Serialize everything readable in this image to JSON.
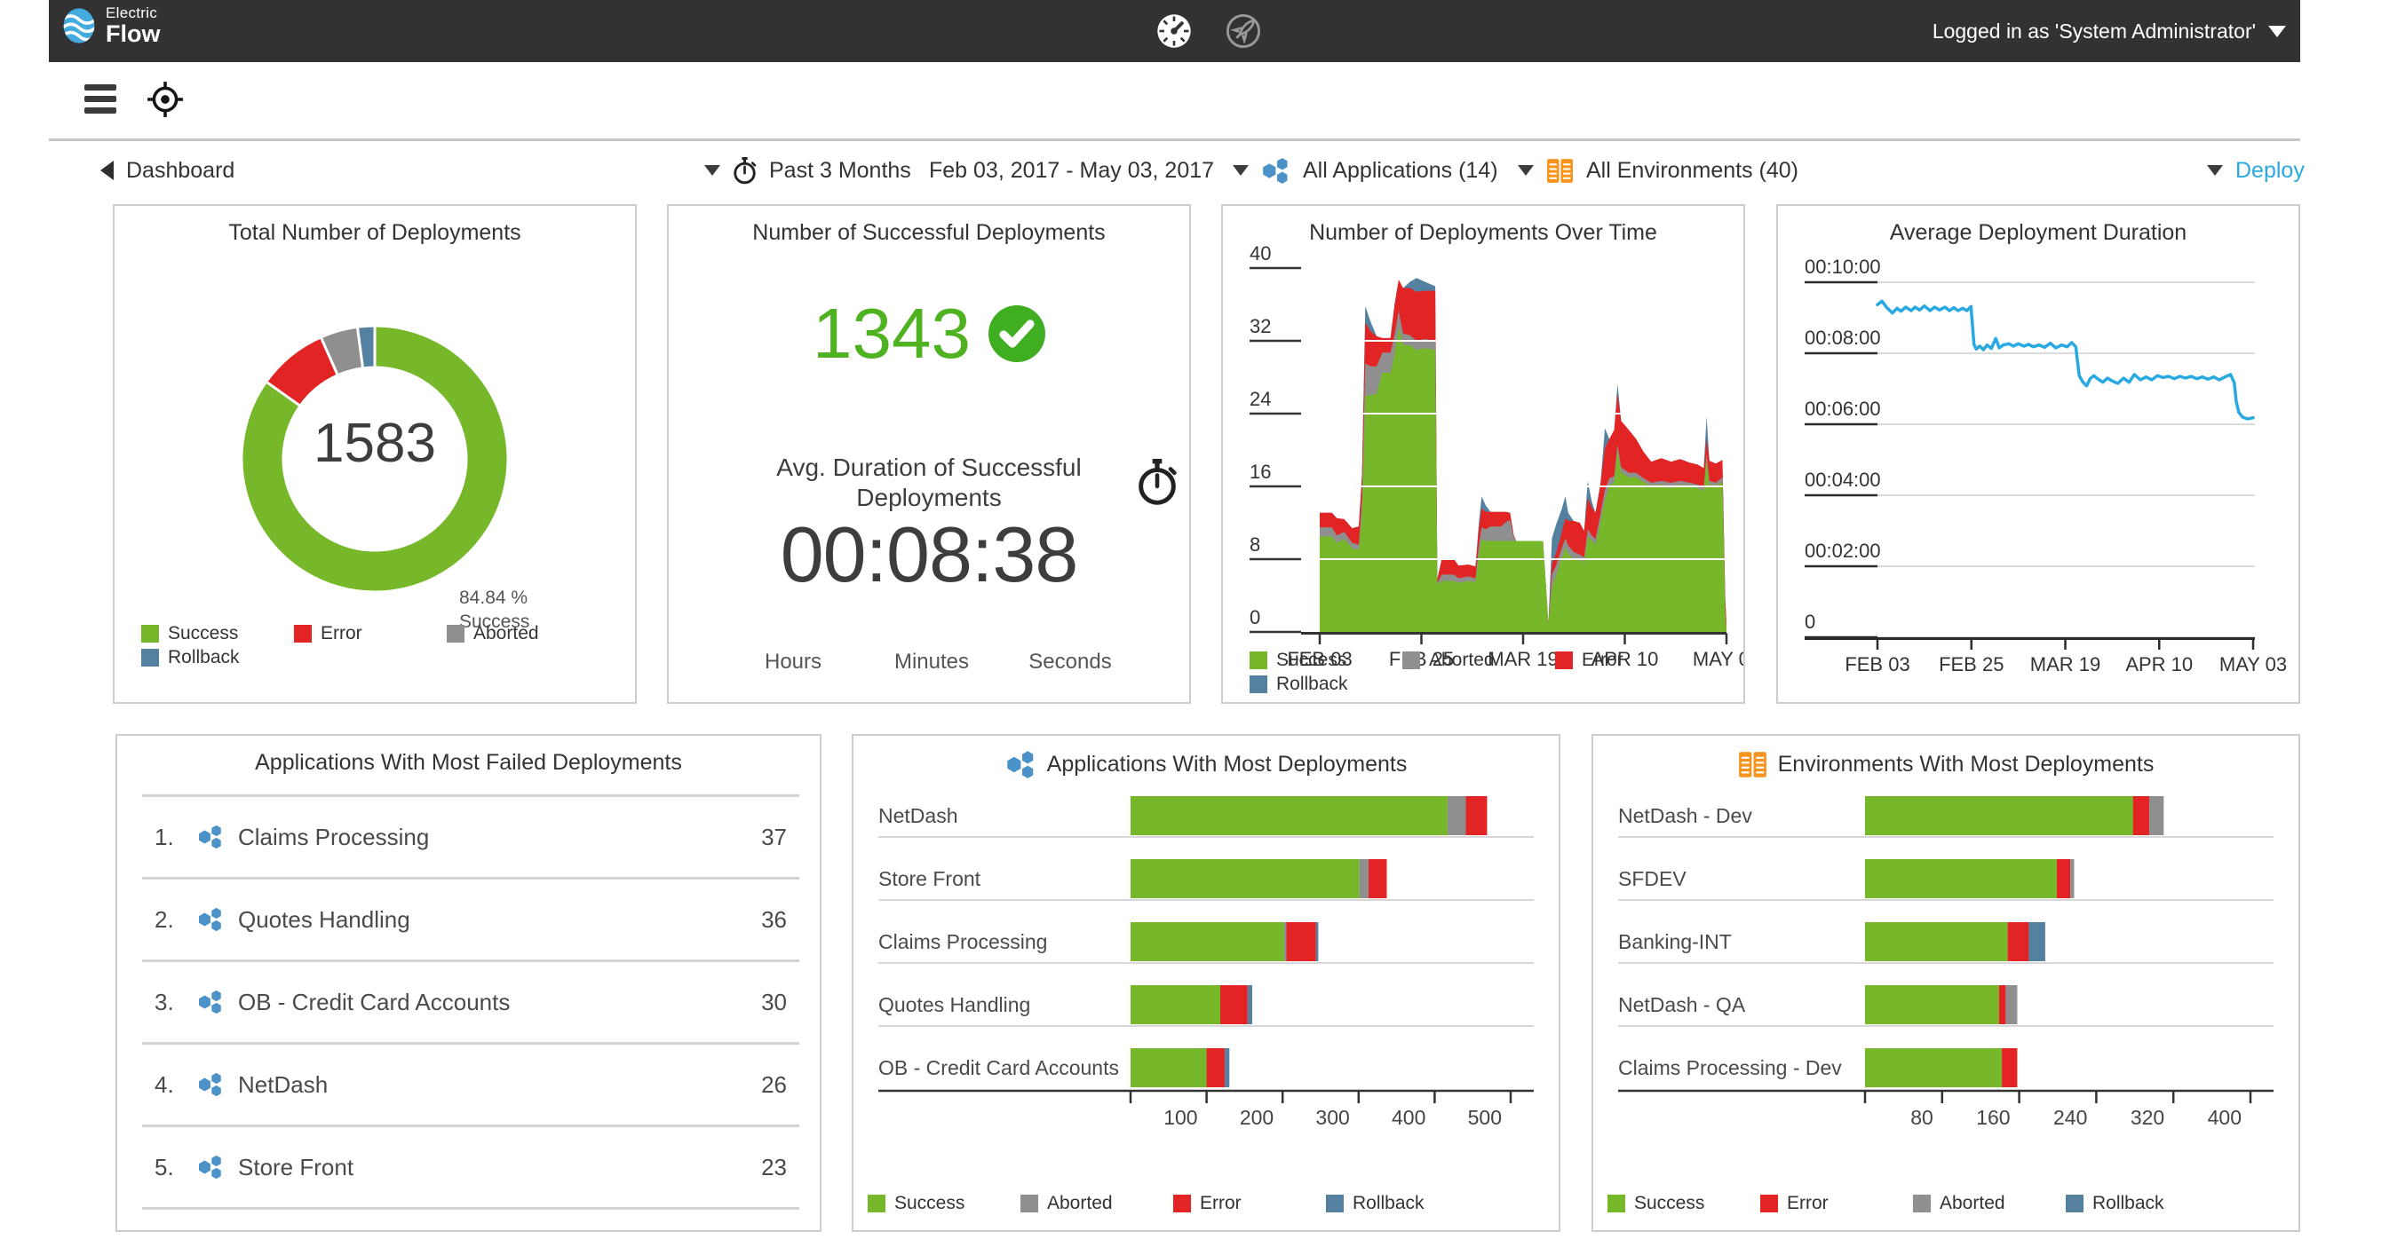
{
  "header": {
    "logo_line1": "Electric",
    "logo_line2": "Flow",
    "user": "Logged in as 'System Administrator'"
  },
  "filters": {
    "breadcrumb": "Dashboard",
    "time_range": "Past 3 Months",
    "date_range": "Feb 03, 2017 - May 03, 2017",
    "applications": "All Applications (14)",
    "environments": "All Environments (40)",
    "deploy": "Deploy"
  },
  "colors": {
    "success": "#76b82a",
    "error": "#e22424",
    "aborted": "#8f8f8f",
    "rollback": "#5581a0",
    "line": "#29a9e1",
    "accent": "#29a9e1",
    "app_icon": "#4b92c8",
    "env_icon": "#f7941e",
    "header_bg": "#323232"
  },
  "cards": {
    "total": {
      "title": "Total Number of Deployments",
      "value": "1583",
      "pct": "84.84 %",
      "pct_label": "Success",
      "legend": [
        {
          "label": "Success",
          "color": "success"
        },
        {
          "label": "Error",
          "color": "error"
        },
        {
          "label": "Aborted",
          "color": "aborted"
        },
        {
          "label": "Rollback",
          "color": "rollback"
        }
      ],
      "chart_data": {
        "type": "pie",
        "donut": true,
        "segments": [
          {
            "label": "Success",
            "pct": 84.84,
            "color": "success"
          },
          {
            "label": "Error",
            "pct": 8.53,
            "color": "error"
          },
          {
            "label": "Aborted",
            "pct": 4.55,
            "color": "aborted"
          },
          {
            "label": "Rollback",
            "pct": 2.08,
            "color": "rollback"
          }
        ]
      }
    },
    "success_card": {
      "title": "Number of Successful Deployments",
      "value": "1343",
      "avg_label": "Avg. Duration of Successful Deployments",
      "duration": "00:08:38",
      "units": [
        "Hours",
        "Minutes",
        "Seconds"
      ]
    },
    "over_time": {
      "title": "Number of Deployments Over Time",
      "legend": [
        {
          "label": "Success",
          "color": "success"
        },
        {
          "label": "Aborted",
          "color": "aborted"
        },
        {
          "label": "Error",
          "color": "error"
        },
        {
          "label": "Rollback",
          "color": "rollback"
        }
      ],
      "chart_data": {
        "type": "area",
        "stacked": true,
        "ylim": [
          0,
          40
        ],
        "yticks": [
          0,
          8,
          16,
          24,
          32,
          40
        ],
        "xlabels": [
          "FEB 03",
          "FEB 25",
          "MAR 19",
          "APR 10",
          "MAY 03"
        ],
        "series_order": [
          "success",
          "aborted",
          "error",
          "rollback"
        ],
        "samples": [
          [
            0.0,
            10.5,
            1.0,
            1.6,
            0
          ],
          [
            0.03,
            10.5,
            1.0,
            1.6,
            0
          ],
          [
            0.042,
            9.8,
            0.8,
            1.9,
            0
          ],
          [
            0.06,
            10.2,
            0.8,
            1.4,
            0
          ],
          [
            0.08,
            9.2,
            0.6,
            1.6,
            0
          ],
          [
            0.096,
            9.0,
            0.6,
            2.0,
            0
          ],
          [
            0.104,
            13.0,
            1.6,
            2.6,
            0
          ],
          [
            0.112,
            26.0,
            3.5,
            4.5,
            1.8
          ],
          [
            0.126,
            26.0,
            3.2,
            3.8,
            1.0
          ],
          [
            0.14,
            26.2,
            3.0,
            3.3,
            0
          ],
          [
            0.154,
            28.5,
            2.2,
            1.6,
            0
          ],
          [
            0.174,
            28.5,
            2.2,
            1.6,
            0
          ],
          [
            0.184,
            30.5,
            2.2,
            3.3,
            0
          ],
          [
            0.194,
            33.5,
            1.8,
            3.4,
            0
          ],
          [
            0.205,
            31.5,
            1.3,
            5.0,
            0
          ],
          [
            0.222,
            31.5,
            1.1,
            5.2,
            0.7
          ],
          [
            0.238,
            31.0,
            1.0,
            5.4,
            1.5
          ],
          [
            0.258,
            31.2,
            1.0,
            5.3,
            1.0
          ],
          [
            0.284,
            31.0,
            1.0,
            5.5,
            0.5
          ],
          [
            0.289,
            5.2,
            0.2,
            0.4,
            0
          ],
          [
            0.3,
            5.6,
            0.7,
            1.7,
            0
          ],
          [
            0.33,
            5.6,
            0.7,
            1.7,
            0
          ],
          [
            0.341,
            5.4,
            0.5,
            1.4,
            0
          ],
          [
            0.366,
            5.6,
            0.5,
            1.3,
            0
          ],
          [
            0.383,
            5.5,
            0.4,
            1.3,
            0
          ],
          [
            0.391,
            8.5,
            1.0,
            1.8,
            0.6
          ],
          [
            0.398,
            10.2,
            1.3,
            2.1,
            1.3
          ],
          [
            0.408,
            10.0,
            1.3,
            1.9,
            0.7
          ],
          [
            0.42,
            10.0,
            1.6,
            1.6,
            0
          ],
          [
            0.446,
            10.0,
            1.6,
            1.6,
            0
          ],
          [
            0.458,
            10.0,
            2.1,
            1.1,
            0
          ],
          [
            0.468,
            10.0,
            2.3,
            0.8,
            0
          ],
          [
            0.477,
            10.0,
            0.4,
            0.2,
            0
          ],
          [
            0.483,
            10.0,
            0,
            0,
            0
          ],
          [
            0.549,
            10.0,
            0,
            0,
            0
          ],
          [
            0.557,
            4.5,
            0,
            0,
            0
          ],
          [
            0.562,
            0.8,
            0,
            0,
            0
          ],
          [
            0.571,
            5.0,
            1.3,
            1.2,
            2.8
          ],
          [
            0.581,
            6.2,
            1.1,
            1.3,
            3.2
          ],
          [
            0.594,
            8.0,
            1.1,
            1.7,
            2.6
          ],
          [
            0.604,
            9.3,
            1.0,
            2.2,
            2.4
          ],
          [
            0.611,
            8.6,
            0.9,
            2.7,
            0.9
          ],
          [
            0.624,
            8.0,
            0.8,
            3.4,
            0
          ],
          [
            0.639,
            7.9,
            0.6,
            3.5,
            0
          ],
          [
            0.65,
            7.7,
            0.5,
            2.9,
            0
          ],
          [
            0.659,
            10.5,
            0.8,
            3.4,
            1.9
          ],
          [
            0.669,
            10.0,
            0.6,
            3.1,
            0.6
          ],
          [
            0.678,
            9.6,
            0.6,
            2.9,
            0
          ],
          [
            0.69,
            12.0,
            0.9,
            3.3,
            0
          ],
          [
            0.701,
            14.5,
            1.1,
            4.6,
            2.2
          ],
          [
            0.712,
            16.0,
            0.9,
            4.3,
            0
          ],
          [
            0.724,
            16.5,
            0.6,
            5.1,
            0
          ],
          [
            0.732,
            20.0,
            0.6,
            5.6,
            1.1
          ],
          [
            0.741,
            17.5,
            0.6,
            5.1,
            0
          ],
          [
            0.76,
            17.0,
            0.5,
            4.7,
            0
          ],
          [
            0.778,
            17.0,
            0.5,
            3.7,
            0
          ],
          [
            0.796,
            16.5,
            0.4,
            2.9,
            0
          ],
          [
            0.815,
            16.0,
            0.4,
            2.3,
            0
          ],
          [
            0.84,
            16.2,
            0.4,
            2.5,
            0
          ],
          [
            0.864,
            16.0,
            0.4,
            2.3,
            0
          ],
          [
            0.886,
            16.2,
            0.4,
            2.4,
            0
          ],
          [
            0.91,
            16.0,
            0.4,
            2.2,
            0
          ],
          [
            0.929,
            15.8,
            0.4,
            2.2,
            0
          ],
          [
            0.944,
            15.5,
            0.4,
            2.1,
            0
          ],
          [
            0.951,
            19.0,
            0.6,
            1.6,
            2.5
          ],
          [
            0.958,
            16.2,
            0.4,
            2.2,
            0
          ],
          [
            0.974,
            16.0,
            0.4,
            2.1,
            0
          ],
          [
            0.99,
            16.5,
            0.5,
            1.9,
            0
          ],
          [
            0.997,
            2.0,
            0.2,
            1.5,
            0
          ],
          [
            1.0,
            0.2,
            0,
            0.6,
            0
          ]
        ]
      }
    },
    "avg_duration": {
      "title": "Average Deployment Duration",
      "chart_data": {
        "type": "line",
        "yticks": [
          {
            "label": "00:10:00",
            "value": 600
          },
          {
            "label": "00:08:00",
            "value": 480
          },
          {
            "label": "00:06:00",
            "value": 360
          },
          {
            "label": "00:04:00",
            "value": 240
          },
          {
            "label": "00:02:00",
            "value": 120
          },
          {
            "label": "0",
            "value": 0
          }
        ],
        "xlabels": [
          "FEB 03",
          "FEB 25",
          "MAR 19",
          "APR 10",
          "MAY 03"
        ],
        "points": [
          [
            0.0,
            562
          ],
          [
            0.012,
            568
          ],
          [
            0.025,
            557
          ],
          [
            0.04,
            548
          ],
          [
            0.052,
            556
          ],
          [
            0.063,
            551
          ],
          [
            0.075,
            558
          ],
          [
            0.09,
            552
          ],
          [
            0.1,
            558
          ],
          [
            0.112,
            553
          ],
          [
            0.125,
            560
          ],
          [
            0.14,
            552
          ],
          [
            0.152,
            558
          ],
          [
            0.165,
            553
          ],
          [
            0.18,
            558
          ],
          [
            0.192,
            552
          ],
          [
            0.203,
            557
          ],
          [
            0.215,
            552
          ],
          [
            0.227,
            556
          ],
          [
            0.238,
            552
          ],
          [
            0.249,
            559
          ],
          [
            0.257,
            495
          ],
          [
            0.263,
            487
          ],
          [
            0.272,
            492
          ],
          [
            0.282,
            486
          ],
          [
            0.292,
            494
          ],
          [
            0.303,
            488
          ],
          [
            0.315,
            505
          ],
          [
            0.324,
            489
          ],
          [
            0.335,
            494
          ],
          [
            0.35,
            496
          ],
          [
            0.362,
            492
          ],
          [
            0.375,
            496
          ],
          [
            0.39,
            492
          ],
          [
            0.402,
            495
          ],
          [
            0.415,
            491
          ],
          [
            0.43,
            494
          ],
          [
            0.445,
            490
          ],
          [
            0.46,
            497
          ],
          [
            0.475,
            489
          ],
          [
            0.49,
            494
          ],
          [
            0.505,
            491
          ],
          [
            0.517,
            498
          ],
          [
            0.528,
            491
          ],
          [
            0.537,
            442
          ],
          [
            0.547,
            431
          ],
          [
            0.557,
            425
          ],
          [
            0.566,
            437
          ],
          [
            0.576,
            442
          ],
          [
            0.586,
            437
          ],
          [
            0.6,
            431
          ],
          [
            0.612,
            438
          ],
          [
            0.625,
            433
          ],
          [
            0.64,
            429
          ],
          [
            0.655,
            438
          ],
          [
            0.67,
            431
          ],
          [
            0.684,
            444
          ],
          [
            0.7,
            435
          ],
          [
            0.715,
            440
          ],
          [
            0.73,
            435
          ],
          [
            0.745,
            442
          ],
          [
            0.76,
            439
          ],
          [
            0.775,
            441
          ],
          [
            0.79,
            437
          ],
          [
            0.805,
            441
          ],
          [
            0.82,
            438
          ],
          [
            0.835,
            441
          ],
          [
            0.85,
            437
          ],
          [
            0.865,
            440
          ],
          [
            0.88,
            436
          ],
          [
            0.895,
            440
          ],
          [
            0.91,
            435
          ],
          [
            0.925,
            440
          ],
          [
            0.94,
            444
          ],
          [
            0.95,
            430
          ],
          [
            0.955,
            398
          ],
          [
            0.962,
            380
          ],
          [
            0.972,
            372
          ],
          [
            0.985,
            369
          ],
          [
            1.0,
            371
          ]
        ]
      }
    },
    "most_failed": {
      "title": "Applications With Most Failed Deployments",
      "rows": [
        {
          "rank": "1.",
          "name": "Claims Processing",
          "count": "37"
        },
        {
          "rank": "2.",
          "name": "Quotes Handling",
          "count": "36"
        },
        {
          "rank": "3.",
          "name": "OB - Credit Card Accounts",
          "count": "30"
        },
        {
          "rank": "4.",
          "name": "NetDash",
          "count": "26"
        },
        {
          "rank": "5.",
          "name": "Store Front",
          "count": "23"
        }
      ]
    },
    "apps_most": {
      "title": "Applications With Most Deployments",
      "legend": [
        {
          "label": "Success",
          "color": "success"
        },
        {
          "label": "Aborted",
          "color": "aborted"
        },
        {
          "label": "Error",
          "color": "error"
        },
        {
          "label": "Rollback",
          "color": "rollback"
        }
      ],
      "chart_data": {
        "type": "bar",
        "orientation": "horizontal",
        "stacked": true,
        "xticks": [
          100,
          200,
          300,
          400,
          500
        ],
        "xmax": 500,
        "categories": [
          "NetDash",
          "Store Front",
          "Claims Processing",
          "Quotes Handling",
          "OB - Credit Card Accounts"
        ],
        "series_order": [
          "success",
          "aborted",
          "error",
          "rollback"
        ],
        "series": {
          "success": [
            417,
            301,
            202,
            118,
            100
          ],
          "aborted": [
            24,
            12,
            3,
            0,
            0
          ],
          "error": [
            28,
            24,
            39,
            36,
            24
          ],
          "rollback": [
            0,
            0,
            3,
            6,
            6
          ]
        }
      }
    },
    "envs_most": {
      "title": "Environments With Most Deployments",
      "legend": [
        {
          "label": "Success",
          "color": "success"
        },
        {
          "label": "Error",
          "color": "error"
        },
        {
          "label": "Aborted",
          "color": "aborted"
        },
        {
          "label": "Rollback",
          "color": "rollback"
        }
      ],
      "chart_data": {
        "type": "bar",
        "orientation": "horizontal",
        "stacked": true,
        "xticks": [
          80,
          160,
          240,
          320,
          400
        ],
        "xmax": 400,
        "categories": [
          "NetDash - Dev",
          "SFDEV",
          "Banking-INT",
          "NetDash - QA",
          "Claims Processing - Dev"
        ],
        "series_order": [
          "success",
          "error",
          "aborted",
          "rollback"
        ],
        "series": {
          "success": [
            278,
            199,
            148,
            139,
            142
          ],
          "error": [
            17,
            14,
            22,
            7,
            16
          ],
          "aborted": [
            15,
            4,
            0,
            12,
            0
          ],
          "rollback": [
            0,
            0,
            17,
            0,
            0
          ]
        }
      }
    }
  }
}
